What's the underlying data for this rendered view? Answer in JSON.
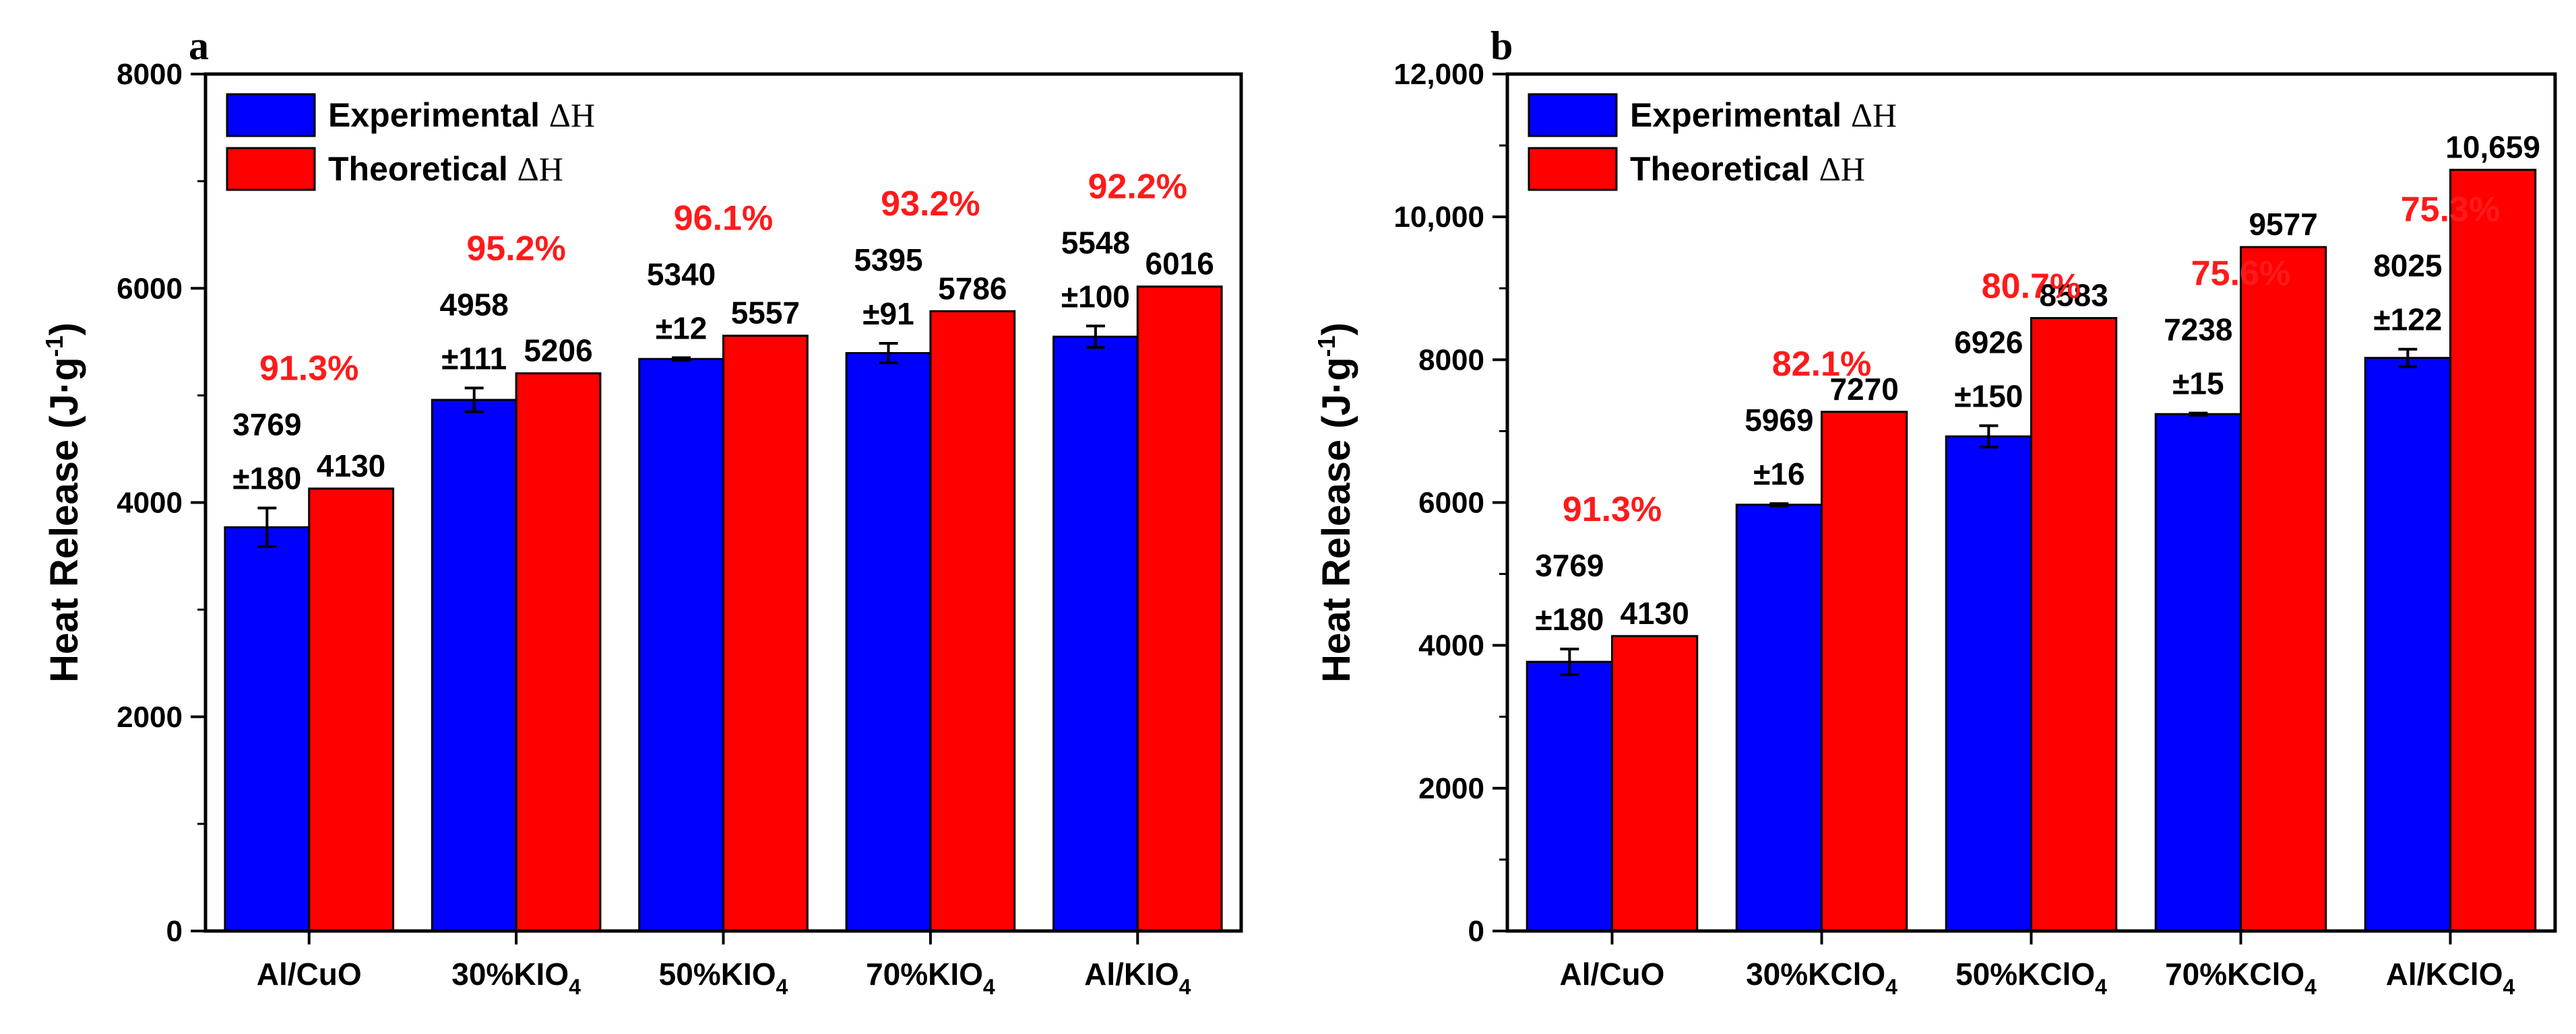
{
  "chart_data": [
    {
      "panel": "a",
      "type": "bar",
      "ylabel": "Heat Release (J·g",
      "ylabel_sup": "-1",
      "ylabel_close": ")",
      "ylim": [
        0,
        8000
      ],
      "yticks": [
        0,
        2000,
        4000,
        6000,
        8000
      ],
      "ytick_labels": [
        "0",
        "2000",
        "4000",
        "6000",
        "8000"
      ],
      "categories": [
        {
          "base": "Al/CuO",
          "sub": ""
        },
        {
          "base": "30%KIO",
          "sub": "4"
        },
        {
          "base": "50%KIO",
          "sub": "4"
        },
        {
          "base": "70%KIO",
          "sub": "4"
        },
        {
          "base": "Al/KIO",
          "sub": "4"
        }
      ],
      "series": [
        {
          "name": "Experimental ΔH",
          "color": "#0000ff",
          "values": [
            3769,
            4958,
            5340,
            5395,
            5548
          ],
          "errors": [
            180,
            111,
            12,
            91,
            100
          ],
          "value_labels": [
            "3769",
            "4958",
            "5340",
            "5395",
            "5548"
          ],
          "error_labels": [
            "±180",
            "±111",
            "±12",
            "±91",
            "±100"
          ]
        },
        {
          "name": "Theoretical ΔH",
          "color": "#ff0000",
          "values": [
            4130,
            5206,
            5557,
            5786,
            6016
          ],
          "value_labels": [
            "4130",
            "5206",
            "5557",
            "5786",
            "6016"
          ]
        }
      ],
      "efficiency_labels": [
        "91.3%",
        "95.2%",
        "96.1%",
        "93.2%",
        "92.2%"
      ],
      "legend": [
        {
          "base": "Experimental ",
          "delta": "ΔH",
          "color": "#0000ff"
        },
        {
          "base": "Theoretical ",
          "delta": "ΔH",
          "color": "#ff0000"
        }
      ],
      "legend_position": "top-left"
    },
    {
      "panel": "b",
      "type": "bar",
      "ylabel": "Heat Release (J·g",
      "ylabel_sup": "-1",
      "ylabel_close": ")",
      "ylim": [
        0,
        12000
      ],
      "yticks": [
        0,
        2000,
        4000,
        6000,
        8000,
        10000,
        12000
      ],
      "ytick_labels": [
        "0",
        "2000",
        "4000",
        "6000",
        "8000",
        "10,000",
        "12,000"
      ],
      "categories": [
        {
          "base": "Al/CuO",
          "sub": ""
        },
        {
          "base": "30%KClO",
          "sub": "4"
        },
        {
          "base": "50%KClO",
          "sub": "4"
        },
        {
          "base": "70%KClO",
          "sub": "4"
        },
        {
          "base": "Al/KClO",
          "sub": "4"
        }
      ],
      "series": [
        {
          "name": "Experimental ΔH",
          "color": "#0000ff",
          "values": [
            3769,
            5969,
            6926,
            7238,
            8025
          ],
          "errors": [
            180,
            16,
            150,
            15,
            122
          ],
          "value_labels": [
            "3769",
            "5969",
            "6926",
            "7238",
            "8025"
          ],
          "error_labels": [
            "±180",
            "±16",
            "±150",
            "±15",
            "±122"
          ]
        },
        {
          "name": "Theoretical ΔH",
          "color": "#ff0000",
          "values": [
            4130,
            7270,
            8583,
            9577,
            10659
          ],
          "value_labels": [
            "4130",
            "7270",
            "8583",
            "9577",
            "10,659"
          ]
        }
      ],
      "efficiency_labels": [
        "91.3%",
        "82.1%",
        "80.7%",
        "75.6%",
        "75.3%"
      ],
      "legend": [
        {
          "base": "Experimental ",
          "delta": "ΔH",
          "color": "#0000ff"
        },
        {
          "base": "Theoretical ",
          "delta": "ΔH",
          "color": "#ff0000"
        }
      ],
      "legend_position": "top-left"
    }
  ]
}
